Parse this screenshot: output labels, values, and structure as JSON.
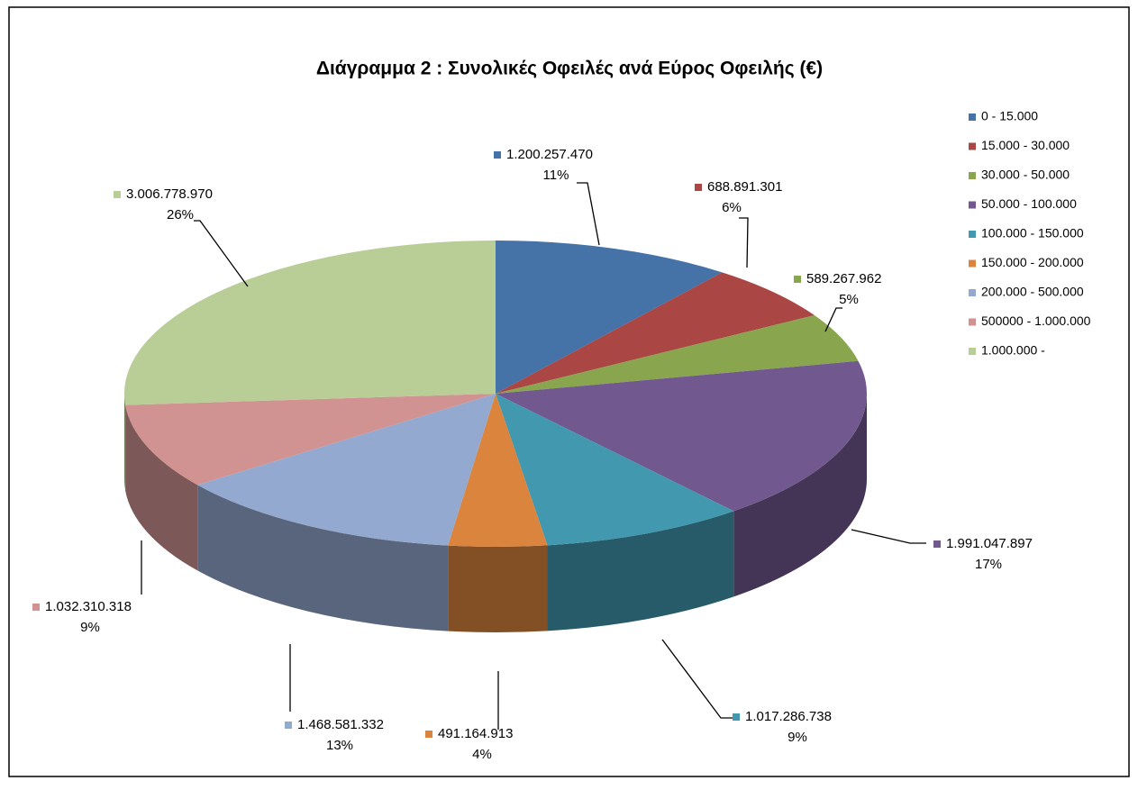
{
  "chart_data": {
    "type": "pie3d",
    "title": "Διάγραμμα 2 : Συνολικές Οφειλές ανά Εύρος Οφειλής (€)",
    "categories": [
      "0 - 15.000",
      "15.000 - 30.000",
      "30.000 - 50.000",
      "50.000 - 100.000",
      "100.000 - 150.000",
      "150.000 - 200.000",
      "200.000 - 500.000",
      "500000 - 1.000.000",
      "1.000.000 -"
    ],
    "values": [
      1200257470,
      688891301,
      589267962,
      1991047897,
      1017286738,
      491164913,
      1468581332,
      1032310318,
      3006778970
    ],
    "value_labels": [
      "1.200.257.470",
      "688.891.301",
      "589.267.962",
      "1.991.047.897",
      "1.017.286.738",
      "491.164.913",
      "1.468.581.332",
      "1.032.310.318",
      "3.006.778.970"
    ],
    "percent_labels": [
      "11%",
      "6%",
      "5%",
      "17%",
      "9%",
      "4%",
      "13%",
      "9%",
      "26%"
    ],
    "colors": [
      "#4572a7",
      "#aa4643",
      "#89a54e",
      "#71588f",
      "#4198af",
      "#db843d",
      "#93a9cf",
      "#d19392",
      "#b9cd96"
    ],
    "legend": "right"
  }
}
